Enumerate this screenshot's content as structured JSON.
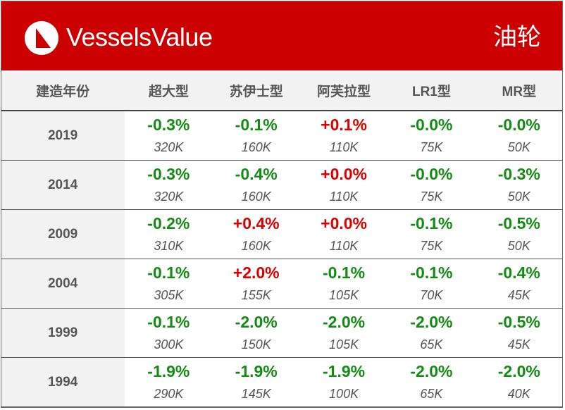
{
  "header": {
    "brand": "VesselsValue",
    "category": "油轮",
    "colors": {
      "background": "#cc0000",
      "text": "#ffffff"
    },
    "logo_icon": "vesselsvalue-logo-icon"
  },
  "table": {
    "columns": [
      "建造年份",
      "超大型",
      "苏伊士型",
      "阿芙拉型",
      "LR1型",
      "MR型"
    ],
    "colors": {
      "negative": "#138c13",
      "positive": "#dd0000"
    },
    "rows": [
      {
        "year": "2019",
        "cells": [
          {
            "change": "-0.3%",
            "dwt": "320K"
          },
          {
            "change": "-0.1%",
            "dwt": "160K"
          },
          {
            "change": "+0.1%",
            "dwt": "110K"
          },
          {
            "change": "-0.0%",
            "dwt": "75K"
          },
          {
            "change": "-0.0%",
            "dwt": "50K"
          }
        ]
      },
      {
        "year": "2014",
        "cells": [
          {
            "change": "-0.3%",
            "dwt": "320K"
          },
          {
            "change": "-0.4%",
            "dwt": "160K"
          },
          {
            "change": "+0.0%",
            "dwt": "110K"
          },
          {
            "change": "-0.0%",
            "dwt": "75K"
          },
          {
            "change": "-0.3%",
            "dwt": "50K"
          }
        ]
      },
      {
        "year": "2009",
        "cells": [
          {
            "change": "-0.2%",
            "dwt": "310K"
          },
          {
            "change": "+0.4%",
            "dwt": "160K"
          },
          {
            "change": "+0.0%",
            "dwt": "110K"
          },
          {
            "change": "-0.1%",
            "dwt": "75K"
          },
          {
            "change": "-0.5%",
            "dwt": "50K"
          }
        ]
      },
      {
        "year": "2004",
        "cells": [
          {
            "change": "-0.1%",
            "dwt": "305K"
          },
          {
            "change": "+2.0%",
            "dwt": "155K"
          },
          {
            "change": "-0.1%",
            "dwt": "105K"
          },
          {
            "change": "-0.1%",
            "dwt": "70K"
          },
          {
            "change": "-0.4%",
            "dwt": "45K"
          }
        ]
      },
      {
        "year": "1999",
        "cells": [
          {
            "change": "-0.1%",
            "dwt": "300K"
          },
          {
            "change": "-2.0%",
            "dwt": "150K"
          },
          {
            "change": "-2.0%",
            "dwt": "105K"
          },
          {
            "change": "-2.0%",
            "dwt": "65K"
          },
          {
            "change": "-0.5%",
            "dwt": "45K"
          }
        ]
      },
      {
        "year": "1994",
        "cells": [
          {
            "change": "-1.9%",
            "dwt": "290K"
          },
          {
            "change": "-1.9%",
            "dwt": "145K"
          },
          {
            "change": "-1.9%",
            "dwt": "100K"
          },
          {
            "change": "-2.0%",
            "dwt": "65K"
          },
          {
            "change": "-2.0%",
            "dwt": "40K"
          }
        ]
      }
    ]
  }
}
